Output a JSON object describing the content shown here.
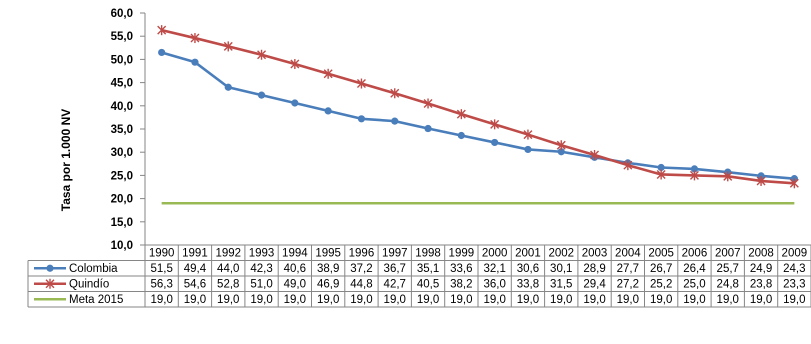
{
  "chart_data": {
    "type": "line",
    "ylabel": "Tasa por 1.000 NV",
    "ylim": [
      10,
      60
    ],
    "yticks": [
      "10,0",
      "15,0",
      "20,0",
      "25,0",
      "30,0",
      "35,0",
      "40,0",
      "45,0",
      "50,0",
      "55,0",
      "60,0"
    ],
    "grid": false,
    "legend": "data-table-rows",
    "categories": [
      "1990",
      "1991",
      "1992",
      "1993",
      "1994",
      "1995",
      "1996",
      "1997",
      "1998",
      "1999",
      "2000",
      "2001",
      "2002",
      "2003",
      "2004",
      "2005",
      "2006",
      "2007",
      "2008",
      "2009"
    ],
    "series": [
      {
        "name": "Colombia",
        "color": "#4a7ebb",
        "marker": "circle",
        "values": [
          51.5,
          49.4,
          44.0,
          42.3,
          40.6,
          38.9,
          37.2,
          36.7,
          35.1,
          33.6,
          32.1,
          30.6,
          30.1,
          28.9,
          27.7,
          26.7,
          26.4,
          25.7,
          24.9,
          24.3
        ],
        "labels": [
          "51,5",
          "49,4",
          "44,0",
          "42,3",
          "40,6",
          "38,9",
          "37,2",
          "36,7",
          "35,1",
          "33,6",
          "32,1",
          "30,6",
          "30,1",
          "28,9",
          "27,7",
          "26,7",
          "26,4",
          "25,7",
          "24,9",
          "24,3"
        ]
      },
      {
        "name": "Quindío",
        "color": "#be4b48",
        "marker": "star",
        "values": [
          56.3,
          54.6,
          52.8,
          51.0,
          49.0,
          46.9,
          44.8,
          42.7,
          40.5,
          38.2,
          36.0,
          33.8,
          31.5,
          29.4,
          27.2,
          25.2,
          25.0,
          24.8,
          23.8,
          23.3
        ],
        "labels": [
          "56,3",
          "54,6",
          "52,8",
          "51,0",
          "49,0",
          "46,9",
          "44,8",
          "42,7",
          "40,5",
          "38,2",
          "36,0",
          "33,8",
          "31,5",
          "29,4",
          "27,2",
          "25,2",
          "25,0",
          "24,8",
          "23,8",
          "23,3"
        ]
      },
      {
        "name": "Meta 2015",
        "color": "#98b954",
        "marker": "none",
        "values": [
          19.0,
          19.0,
          19.0,
          19.0,
          19.0,
          19.0,
          19.0,
          19.0,
          19.0,
          19.0,
          19.0,
          19.0,
          19.0,
          19.0,
          19.0,
          19.0,
          19.0,
          19.0,
          19.0,
          19.0
        ],
        "labels": [
          "19,0",
          "19,0",
          "19,0",
          "19,0",
          "19,0",
          "19,0",
          "19,0",
          "19,0",
          "19,0",
          "19,0",
          "19,0",
          "19,0",
          "19,0",
          "19,0",
          "19,0",
          "19,0",
          "19,0",
          "19,0",
          "19,0",
          "19,0"
        ]
      }
    ]
  }
}
